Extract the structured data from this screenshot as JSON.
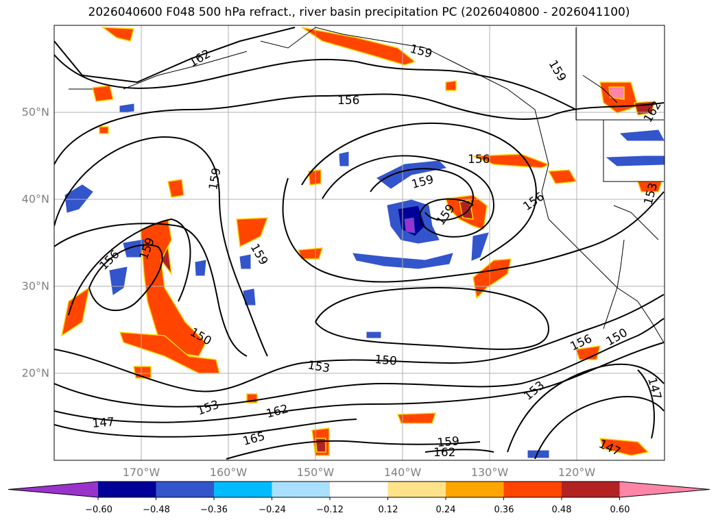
{
  "title": "2026040600 F048 500 hPa refract., river basin precipitation PC (2026040800 - 2026041100)",
  "lat_labels": [
    "50°N",
    "40°N",
    "30°N",
    "20°N"
  ],
  "lon_labels": [
    "170°W",
    "160°W",
    "150°W",
    "140°W",
    "130°W",
    "120°W"
  ],
  "colorbar": {
    "ticks": [
      "−0.60",
      "−0.48",
      "−0.36",
      "−0.24",
      "−0.12",
      "0.12",
      "0.24",
      "0.36",
      "0.48",
      "0.60"
    ],
    "colors": [
      "#9933cc",
      "#000099",
      "#3355cc",
      "#00bbff",
      "#aae0ff",
      "#ffffff",
      "#ffe38a",
      "#ffa500",
      "#ff4500",
      "#b22222",
      "#ff85a8"
    ]
  },
  "contour_labels": [
    "162",
    "159",
    "159",
    "156",
    "159",
    "156",
    "159",
    "156",
    "159",
    "156",
    "159",
    "159",
    "162",
    "150",
    "153",
    "150",
    "153",
    "162",
    "165",
    "147",
    "159",
    "162",
    "156",
    "150",
    "153",
    "147",
    "147",
    "153"
  ]
}
